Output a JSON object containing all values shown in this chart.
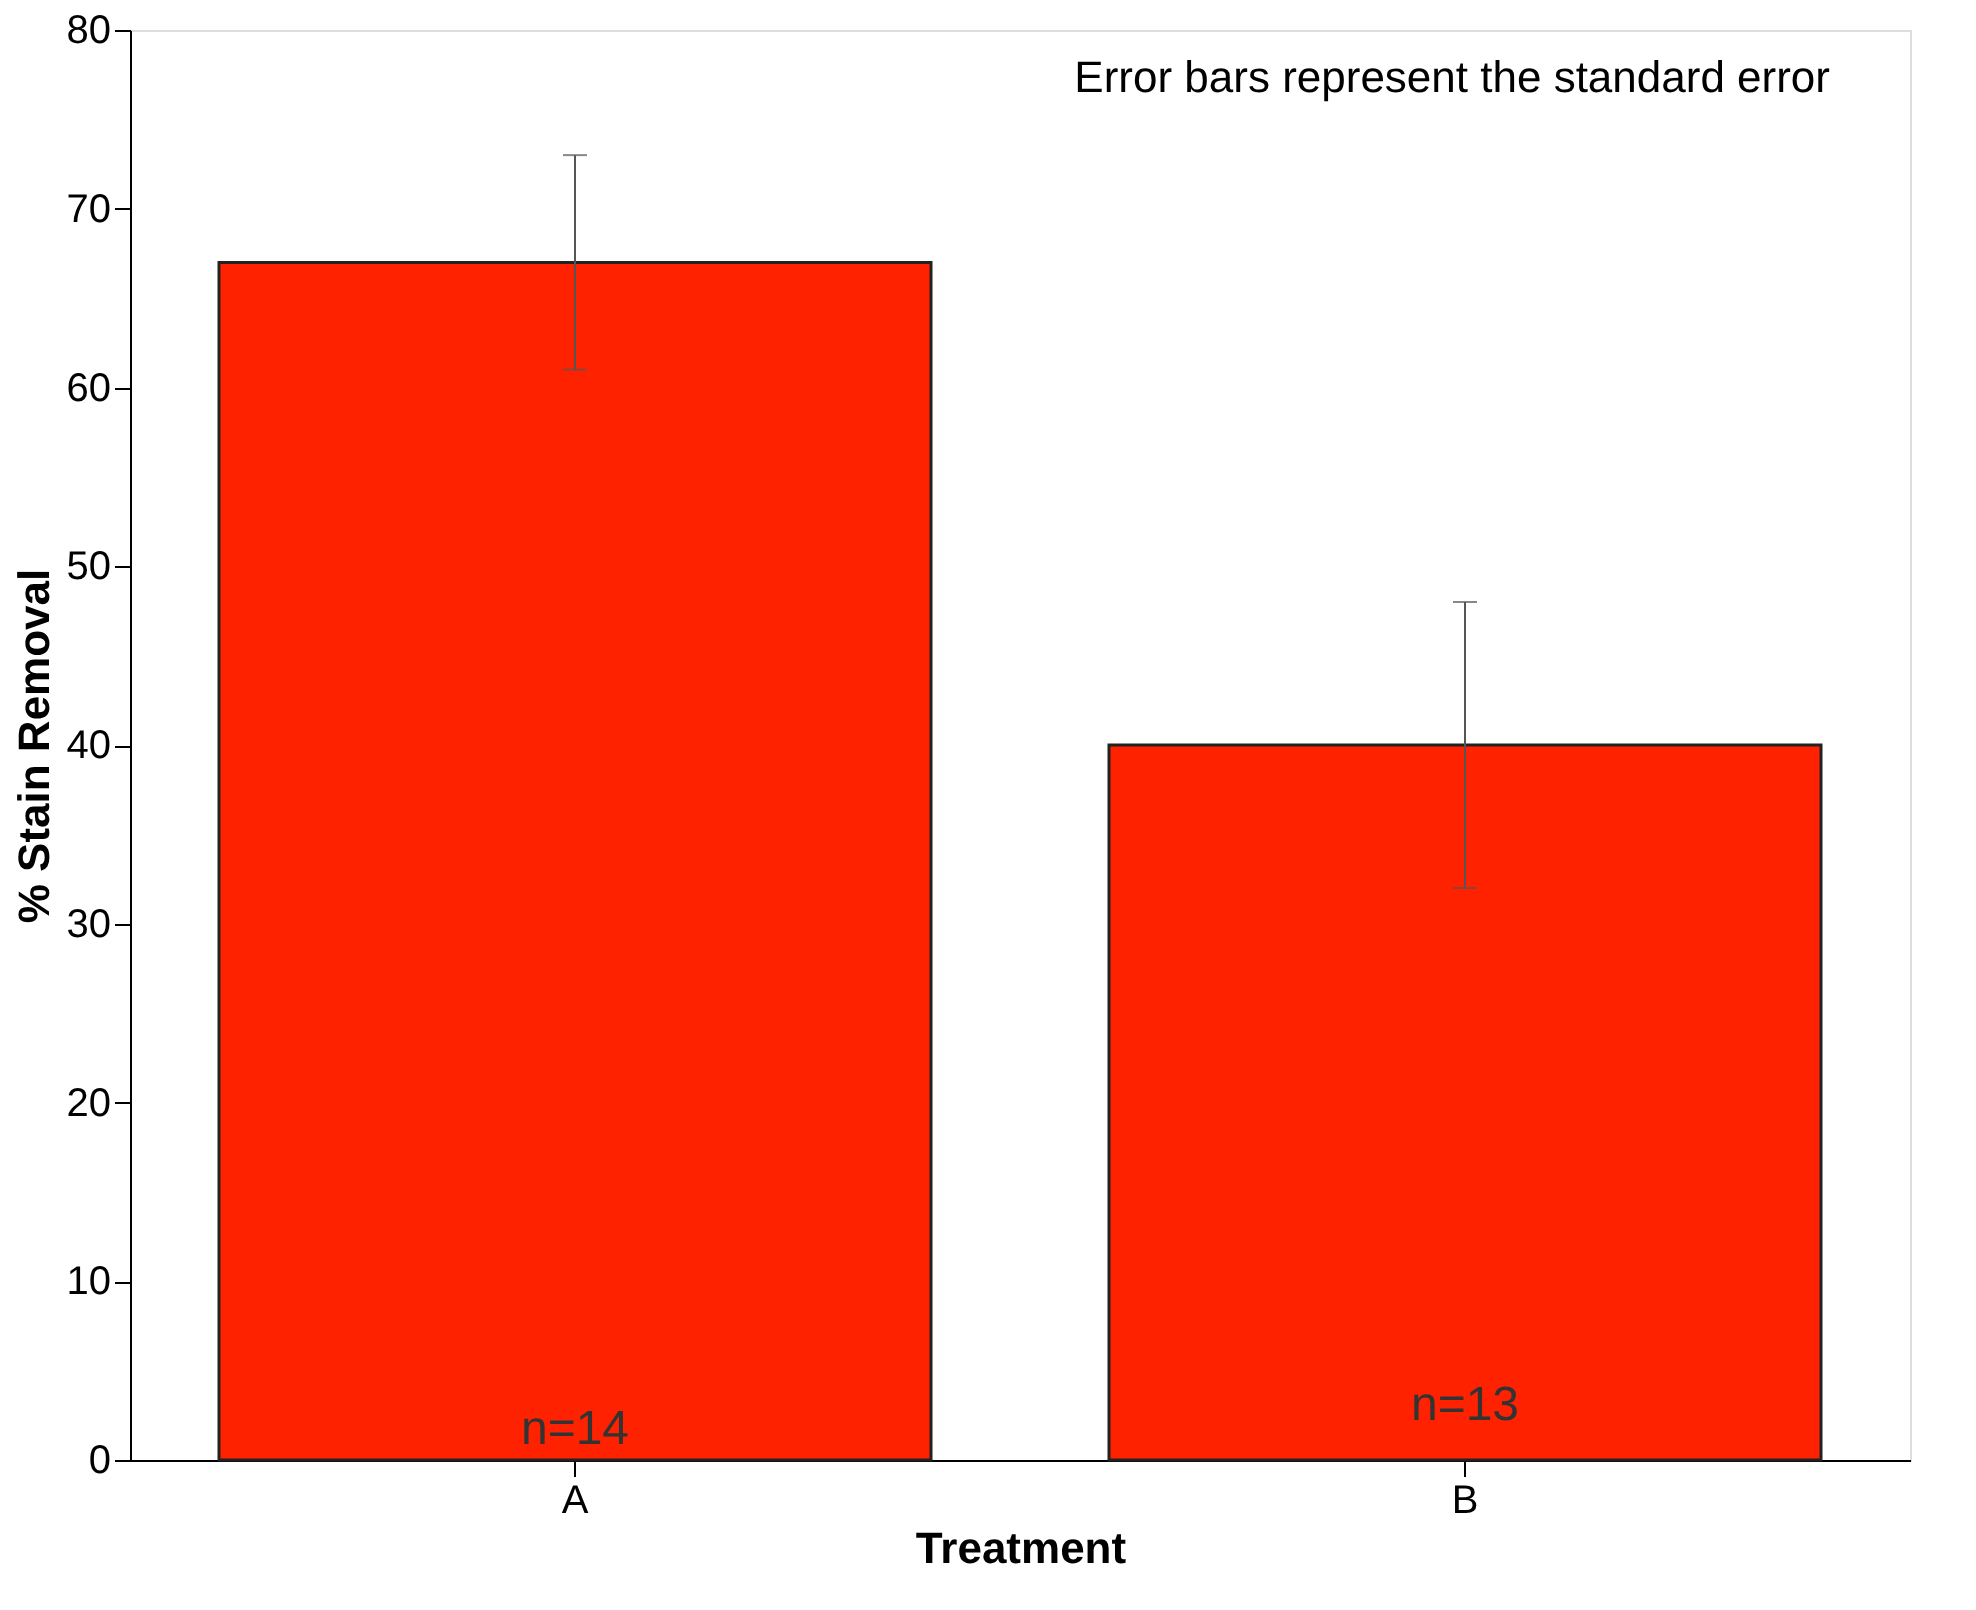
{
  "chart_data": {
    "type": "bar",
    "xlabel": "Treatment",
    "ylabel": "% Stain Removal",
    "categories": [
      "A",
      "B"
    ],
    "values": [
      67,
      40
    ],
    "errors": [
      6,
      8
    ],
    "color": "#ff2200",
    "ylim": [
      0,
      80
    ],
    "yticks": [
      0,
      10,
      20,
      30,
      40,
      50,
      60,
      70,
      80
    ],
    "grid": false,
    "annotations": [
      "Error bars represent the standard error",
      "n=14",
      "n=13"
    ]
  }
}
